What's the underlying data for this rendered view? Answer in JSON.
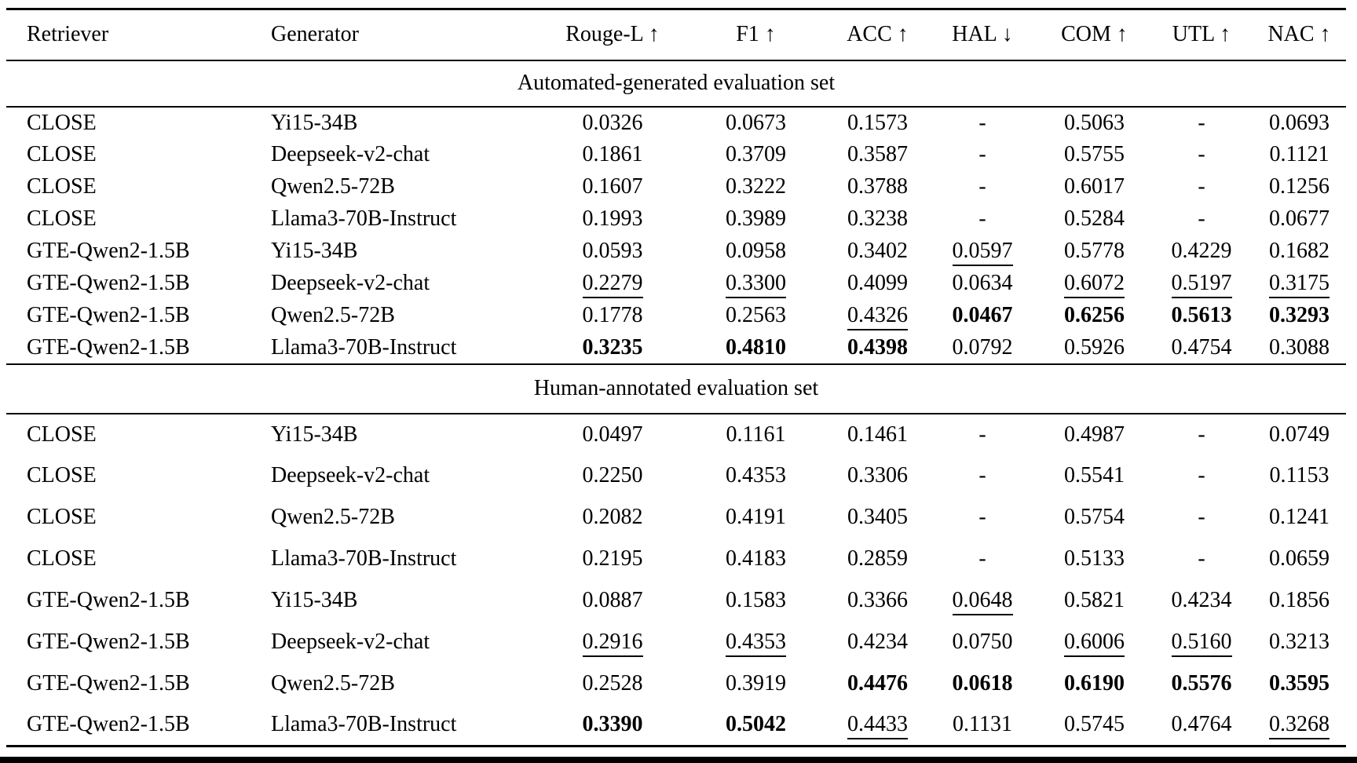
{
  "table": {
    "columns": [
      {
        "label": "Retriever",
        "align": "left"
      },
      {
        "label": "Generator",
        "align": "left"
      },
      {
        "label": "Rouge-L ↑",
        "align": "center"
      },
      {
        "label": "F1 ↑",
        "align": "center"
      },
      {
        "label": "ACC ↑",
        "align": "center"
      },
      {
        "label": "HAL ↓",
        "align": "center"
      },
      {
        "label": "COM ↑",
        "align": "center"
      },
      {
        "label": "UTL ↑",
        "align": "center"
      },
      {
        "label": "NAC ↑",
        "align": "center"
      }
    ],
    "emphasis_legend": {
      "bold": "best result",
      "underline": "second-best result"
    },
    "sections": [
      {
        "title": "Automated-generated evaluation set",
        "rows": [
          {
            "retriever": "CLOSE",
            "generator": "Yi15-34B",
            "metrics": [
              {
                "text": "0.0326",
                "style": "plain"
              },
              {
                "text": "0.0673",
                "style": "plain"
              },
              {
                "text": "0.1573",
                "style": "plain"
              },
              {
                "text": "-",
                "style": "plain"
              },
              {
                "text": "0.5063",
                "style": "plain"
              },
              {
                "text": "-",
                "style": "plain"
              },
              {
                "text": "0.0693",
                "style": "plain"
              }
            ]
          },
          {
            "retriever": "CLOSE",
            "generator": "Deepseek-v2-chat",
            "metrics": [
              {
                "text": "0.1861",
                "style": "plain"
              },
              {
                "text": "0.3709",
                "style": "plain"
              },
              {
                "text": "0.3587",
                "style": "plain"
              },
              {
                "text": "-",
                "style": "plain"
              },
              {
                "text": "0.5755",
                "style": "plain"
              },
              {
                "text": "-",
                "style": "plain"
              },
              {
                "text": "0.1121",
                "style": "plain"
              }
            ]
          },
          {
            "retriever": "CLOSE",
            "generator": "Qwen2.5-72B",
            "metrics": [
              {
                "text": "0.1607",
                "style": "plain"
              },
              {
                "text": "0.3222",
                "style": "plain"
              },
              {
                "text": "0.3788",
                "style": "plain"
              },
              {
                "text": "-",
                "style": "plain"
              },
              {
                "text": "0.6017",
                "style": "plain"
              },
              {
                "text": "-",
                "style": "plain"
              },
              {
                "text": "0.1256",
                "style": "plain"
              }
            ]
          },
          {
            "retriever": "CLOSE",
            "generator": "Llama3-70B-Instruct",
            "metrics": [
              {
                "text": "0.1993",
                "style": "plain"
              },
              {
                "text": "0.3989",
                "style": "plain"
              },
              {
                "text": "0.3238",
                "style": "plain"
              },
              {
                "text": "-",
                "style": "plain"
              },
              {
                "text": "0.5284",
                "style": "plain"
              },
              {
                "text": "-",
                "style": "plain"
              },
              {
                "text": "0.0677",
                "style": "plain"
              }
            ]
          },
          {
            "retriever": "GTE-Qwen2-1.5B",
            "generator": "Yi15-34B",
            "metrics": [
              {
                "text": "0.0593",
                "style": "plain"
              },
              {
                "text": "0.0958",
                "style": "plain"
              },
              {
                "text": "0.3402",
                "style": "plain"
              },
              {
                "text": "0.0597",
                "style": "underline"
              },
              {
                "text": "0.5778",
                "style": "plain"
              },
              {
                "text": "0.4229",
                "style": "plain"
              },
              {
                "text": "0.1682",
                "style": "plain"
              }
            ]
          },
          {
            "retriever": "GTE-Qwen2-1.5B",
            "generator": "Deepseek-v2-chat",
            "metrics": [
              {
                "text": "0.2279",
                "style": "underline"
              },
              {
                "text": "0.3300",
                "style": "underline"
              },
              {
                "text": "0.4099",
                "style": "plain"
              },
              {
                "text": "0.0634",
                "style": "plain"
              },
              {
                "text": "0.6072",
                "style": "underline"
              },
              {
                "text": "0.5197",
                "style": "underline"
              },
              {
                "text": "0.3175",
                "style": "underline"
              }
            ]
          },
          {
            "retriever": "GTE-Qwen2-1.5B",
            "generator": "Qwen2.5-72B",
            "metrics": [
              {
                "text": "0.1778",
                "style": "plain"
              },
              {
                "text": "0.2563",
                "style": "plain"
              },
              {
                "text": "0.4326",
                "style": "underline"
              },
              {
                "text": "0.0467",
                "style": "bold"
              },
              {
                "text": "0.6256",
                "style": "bold"
              },
              {
                "text": "0.5613",
                "style": "bold"
              },
              {
                "text": "0.3293",
                "style": "bold"
              }
            ]
          },
          {
            "retriever": "GTE-Qwen2-1.5B",
            "generator": "Llama3-70B-Instruct",
            "metrics": [
              {
                "text": "0.3235",
                "style": "bold"
              },
              {
                "text": "0.4810",
                "style": "bold"
              },
              {
                "text": "0.4398",
                "style": "bold"
              },
              {
                "text": "0.0792",
                "style": "plain"
              },
              {
                "text": "0.5926",
                "style": "plain"
              },
              {
                "text": "0.4754",
                "style": "plain"
              },
              {
                "text": "0.3088",
                "style": "plain"
              }
            ]
          }
        ]
      },
      {
        "title": "Human-annotated evaluation set",
        "rows": [
          {
            "retriever": "CLOSE",
            "generator": "Yi15-34B",
            "metrics": [
              {
                "text": "0.0497",
                "style": "plain"
              },
              {
                "text": "0.1161",
                "style": "plain"
              },
              {
                "text": "0.1461",
                "style": "plain"
              },
              {
                "text": "-",
                "style": "plain"
              },
              {
                "text": "0.4987",
                "style": "plain"
              },
              {
                "text": "-",
                "style": "plain"
              },
              {
                "text": "0.0749",
                "style": "plain"
              }
            ]
          },
          {
            "retriever": "CLOSE",
            "generator": "Deepseek-v2-chat",
            "metrics": [
              {
                "text": "0.2250",
                "style": "plain"
              },
              {
                "text": "0.4353",
                "style": "plain"
              },
              {
                "text": "0.3306",
                "style": "plain"
              },
              {
                "text": "-",
                "style": "plain"
              },
              {
                "text": "0.5541",
                "style": "plain"
              },
              {
                "text": "-",
                "style": "plain"
              },
              {
                "text": "0.1153",
                "style": "plain"
              }
            ]
          },
          {
            "retriever": "CLOSE",
            "generator": "Qwen2.5-72B",
            "metrics": [
              {
                "text": "0.2082",
                "style": "plain"
              },
              {
                "text": "0.4191",
                "style": "plain"
              },
              {
                "text": "0.3405",
                "style": "plain"
              },
              {
                "text": "-",
                "style": "plain"
              },
              {
                "text": "0.5754",
                "style": "plain"
              },
              {
                "text": "-",
                "style": "plain"
              },
              {
                "text": "0.1241",
                "style": "plain"
              }
            ]
          },
          {
            "retriever": "CLOSE",
            "generator": "Llama3-70B-Instruct",
            "metrics": [
              {
                "text": "0.2195",
                "style": "plain"
              },
              {
                "text": "0.4183",
                "style": "plain"
              },
              {
                "text": "0.2859",
                "style": "plain"
              },
              {
                "text": "-",
                "style": "plain"
              },
              {
                "text": "0.5133",
                "style": "plain"
              },
              {
                "text": "-",
                "style": "plain"
              },
              {
                "text": "0.0659",
                "style": "plain"
              }
            ]
          },
          {
            "retriever": "GTE-Qwen2-1.5B",
            "generator": "Yi15-34B",
            "metrics": [
              {
                "text": "0.0887",
                "style": "plain"
              },
              {
                "text": "0.1583",
                "style": "plain"
              },
              {
                "text": "0.3366",
                "style": "plain"
              },
              {
                "text": "0.0648",
                "style": "underline"
              },
              {
                "text": "0.5821",
                "style": "plain"
              },
              {
                "text": "0.4234",
                "style": "plain"
              },
              {
                "text": "0.1856",
                "style": "plain"
              }
            ]
          },
          {
            "retriever": "GTE-Qwen2-1.5B",
            "generator": "Deepseek-v2-chat",
            "metrics": [
              {
                "text": "0.2916",
                "style": "underline"
              },
              {
                "text": "0.4353",
                "style": "underline"
              },
              {
                "text": "0.4234",
                "style": "plain"
              },
              {
                "text": "0.0750",
                "style": "plain"
              },
              {
                "text": "0.6006",
                "style": "underline"
              },
              {
                "text": "0.5160",
                "style": "underline"
              },
              {
                "text": "0.3213",
                "style": "plain"
              }
            ]
          },
          {
            "retriever": "GTE-Qwen2-1.5B",
            "generator": "Qwen2.5-72B",
            "metrics": [
              {
                "text": "0.2528",
                "style": "plain"
              },
              {
                "text": "0.3919",
                "style": "plain"
              },
              {
                "text": "0.4476",
                "style": "bold"
              },
              {
                "text": "0.0618",
                "style": "bold"
              },
              {
                "text": "0.6190",
                "style": "bold"
              },
              {
                "text": "0.5576",
                "style": "bold"
              },
              {
                "text": "0.3595",
                "style": "bold"
              }
            ]
          },
          {
            "retriever": "GTE-Qwen2-1.5B",
            "generator": "Llama3-70B-Instruct",
            "metrics": [
              {
                "text": "0.3390",
                "style": "bold"
              },
              {
                "text": "0.5042",
                "style": "bold"
              },
              {
                "text": "0.4433",
                "style": "underline"
              },
              {
                "text": "0.1131",
                "style": "plain"
              },
              {
                "text": "0.5745",
                "style": "plain"
              },
              {
                "text": "0.4764",
                "style": "plain"
              },
              {
                "text": "0.3268",
                "style": "underline"
              }
            ]
          }
        ]
      }
    ]
  }
}
